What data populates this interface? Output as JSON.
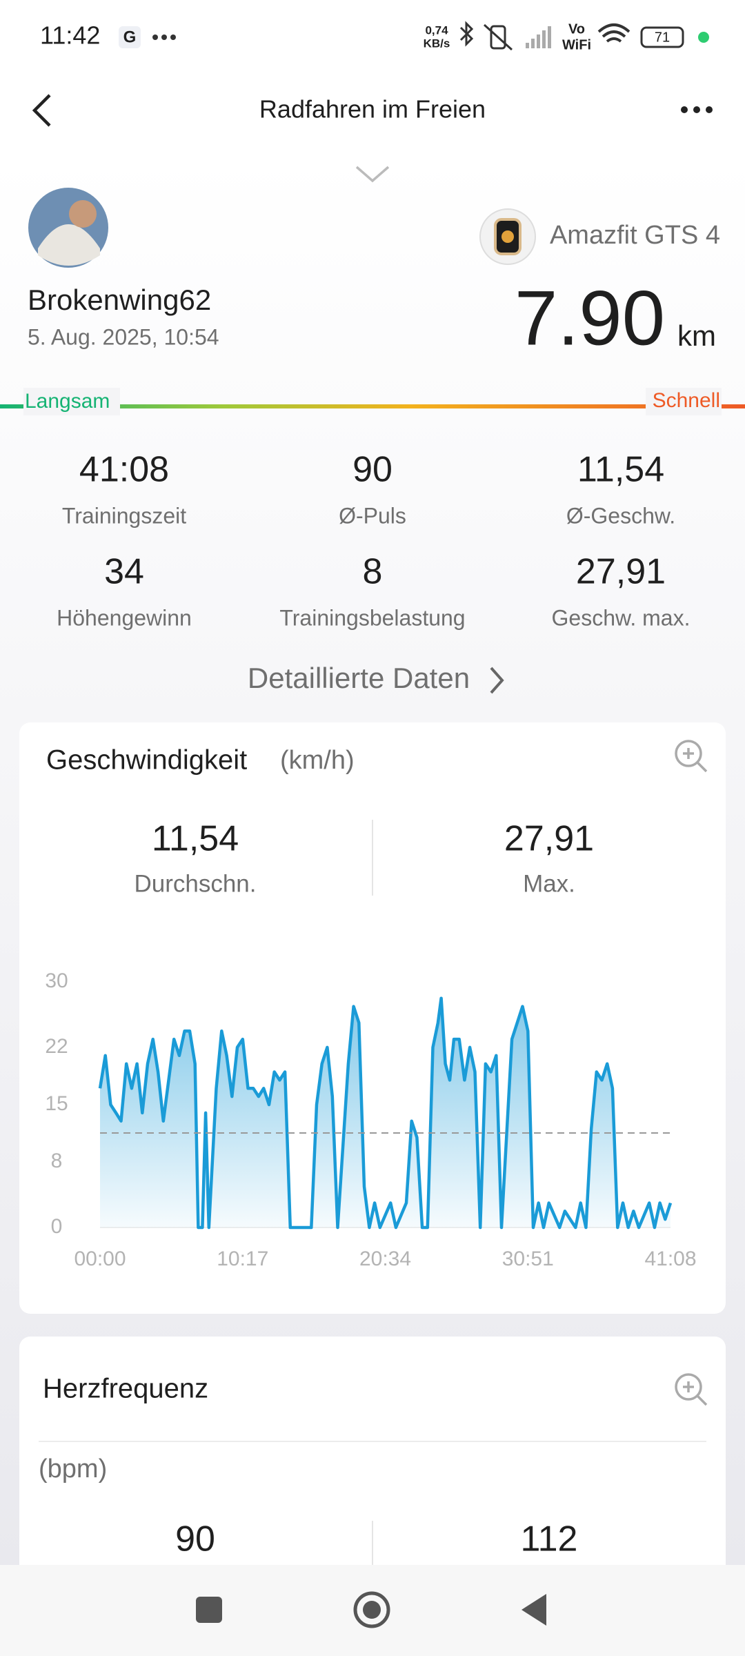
{
  "status_bar": {
    "time": "11:42",
    "net_speed": "0,74",
    "net_unit": "KB/s",
    "volte_top": "Vo",
    "volte_bottom": "WiFi",
    "battery": "71"
  },
  "header": {
    "title": "Radfahren im Freien"
  },
  "summary": {
    "user": "Brokenwing62",
    "date": "5. Aug. 2025, 10:54",
    "device": "Amazfit GTS 4",
    "distance": "7.90",
    "distance_unit": "km",
    "scale_left": "Langsam",
    "scale_right": "Schnell"
  },
  "stats": [
    {
      "value": "41:08",
      "label": "Trainingszeit"
    },
    {
      "value": "90",
      "label": "Ø-Puls"
    },
    {
      "value": "11,54",
      "label": "Ø-Geschw."
    },
    {
      "value": "34",
      "label": "Höhengewinn"
    },
    {
      "value": "8",
      "label": "Trainingsbelastung"
    },
    {
      "value": "27,91",
      "label": "Geschw. max."
    }
  ],
  "details_link": "Detaillierte Daten",
  "speed_card": {
    "title": "Geschwindigkeit",
    "unit": "(km/h)",
    "average": {
      "value": 11.54,
      "label": "11,54"
    },
    "average_caption": "Durchschn.",
    "max": "27,91",
    "max_caption": "Max.",
    "chart": {
      "type": "line",
      "color": "#1a9bd7",
      "x": [
        0,
        23,
        46,
        69,
        91,
        114,
        137,
        160,
        183,
        206,
        229,
        251,
        274,
        297,
        320,
        343,
        366,
        388,
        411,
        425,
        443,
        457,
        471,
        503,
        526,
        548,
        571,
        594,
        617,
        640,
        663,
        686,
        708,
        731,
        754,
        777,
        800,
        823,
        914,
        937,
        960,
        983,
        1005,
        1028,
        1074,
        1097,
        1120,
        1143,
        1165,
        1188,
        1211,
        1257,
        1280,
        1325,
        1348,
        1371,
        1394,
        1417,
        1440,
        1462,
        1476,
        1494,
        1513,
        1531,
        1554,
        1577,
        1600,
        1622,
        1645,
        1668,
        1691,
        1714,
        1737,
        1782,
        1805,
        1828,
        1851,
        1874,
        1897,
        1919,
        1942,
        1988,
        2011,
        2057,
        2079,
        2102,
        2125,
        2148,
        2171,
        2194,
        2217,
        2239,
        2262,
        2285,
        2308,
        2331,
        2376,
        2399,
        2422,
        2445,
        2468
      ],
      "values": [
        17,
        21,
        15,
        14,
        13,
        20,
        17,
        20,
        14,
        20,
        23,
        19,
        13,
        18,
        23,
        21,
        24,
        24,
        20,
        0,
        0,
        14,
        0,
        17,
        24,
        21,
        16,
        22,
        23,
        17,
        17,
        16,
        17,
        15,
        19,
        18,
        19,
        0,
        0,
        15,
        20,
        22,
        16,
        0,
        20,
        27,
        25,
        5,
        0,
        3,
        0,
        3,
        0,
        3,
        13,
        11,
        0,
        0,
        22,
        25,
        28,
        20,
        18,
        23,
        23,
        18,
        22,
        19,
        0,
        20,
        19,
        21,
        0,
        23,
        25,
        27,
        24,
        0,
        3,
        0,
        3,
        0,
        2,
        0,
        3,
        0,
        12,
        19,
        18,
        20,
        17,
        0,
        3,
        0,
        2,
        0,
        3,
        0,
        3,
        1,
        3
      ],
      "xlim": [
        0,
        2468
      ],
      "xticks": [
        {
          "value": 0,
          "label": "00:00"
        },
        {
          "value": 617,
          "label": "10:17"
        },
        {
          "value": 1234,
          "label": "20:34"
        },
        {
          "value": 1851,
          "label": "30:51"
        },
        {
          "value": 2468,
          "label": "41:08"
        }
      ],
      "ylim": [
        0,
        30
      ],
      "yticks": [
        0,
        8,
        15,
        22,
        30
      ]
    }
  },
  "heart_card": {
    "title": "Herzfrequenz",
    "unit": "(bpm)",
    "average": "90",
    "max": "112"
  }
}
